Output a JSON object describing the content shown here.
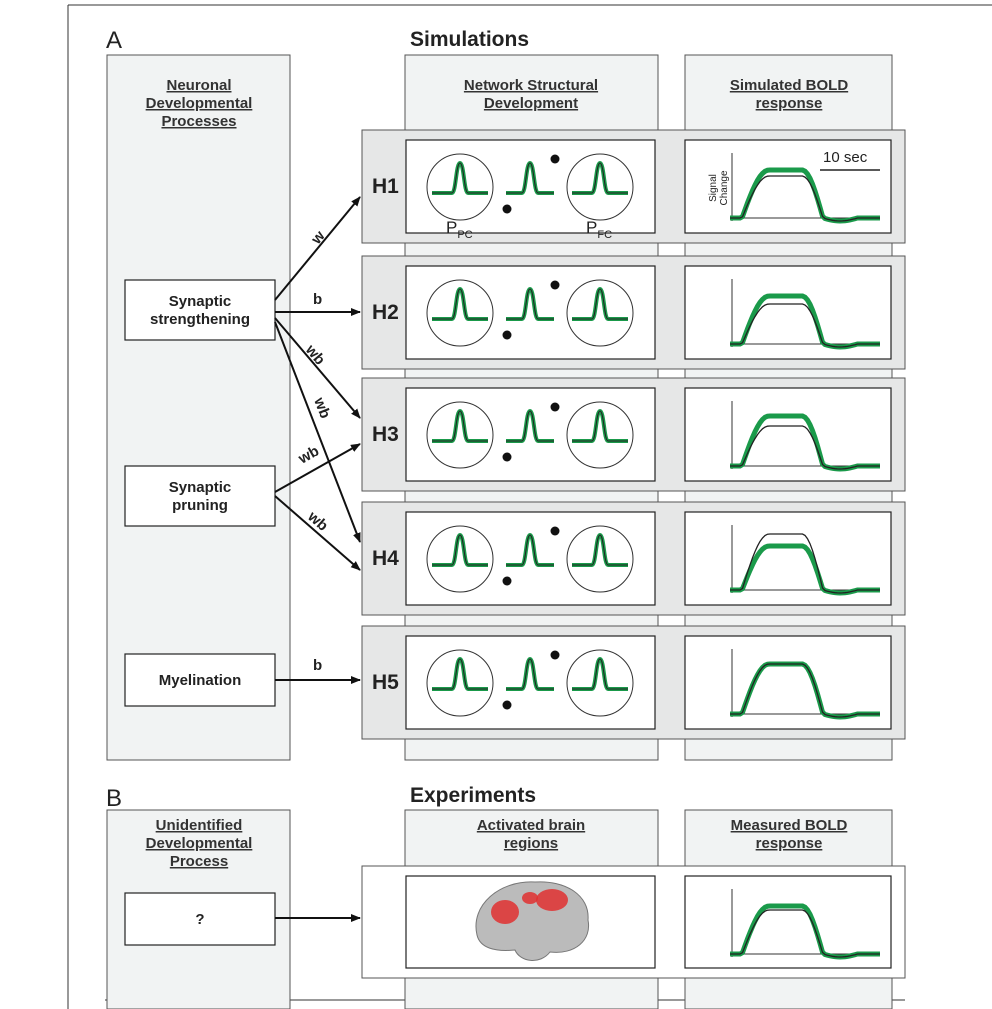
{
  "panel_a": {
    "letter": "A",
    "title": "Simulations",
    "left_heading": [
      "Neuronal",
      "Developmental",
      "Processes"
    ],
    "network_heading": [
      "Network Structural",
      "Development"
    ],
    "bold_heading": [
      "Simulated BOLD",
      "response"
    ],
    "processes": [
      [
        "Synaptic",
        "strengthening"
      ],
      [
        "Synaptic",
        "pruning"
      ],
      [
        "Myelination"
      ]
    ],
    "rows": [
      "H1",
      "H2",
      "H3",
      "H4",
      "H5"
    ],
    "arrow_labels": [
      "w",
      "b",
      "wb",
      "wb",
      "wb",
      "wb",
      "b"
    ],
    "scale_label": "10 sec",
    "y_axis_label": [
      "Signal",
      "Change"
    ],
    "neuron_labels": [
      {
        "main": "P",
        "sub": "PC"
      },
      {
        "main": "P",
        "sub": "FC"
      }
    ]
  },
  "panel_b": {
    "letter": "B",
    "title": "Experiments",
    "left_heading": [
      "Unidentified",
      "Developmental",
      "Process"
    ],
    "network_heading": [
      "Activated brain",
      "regions"
    ],
    "bold_heading": [
      "Measured BOLD",
      "response"
    ],
    "process": "?"
  }
}
